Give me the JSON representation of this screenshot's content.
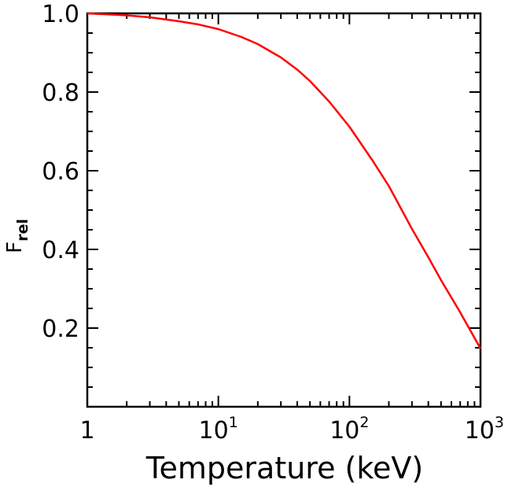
{
  "chart_data": {
    "type": "line",
    "title": "",
    "xlabel": "Temperature (keV)",
    "ylabel": "F",
    "ylabel_subscript": "rel",
    "x_scale": "log",
    "xlim": [
      1,
      1000
    ],
    "ylim": [
      0,
      1.0
    ],
    "x_ticks": [
      {
        "value": 1,
        "base": "1",
        "exp": ""
      },
      {
        "value": 10,
        "base": "10",
        "exp": "1"
      },
      {
        "value": 100,
        "base": "10",
        "exp": "2"
      },
      {
        "value": 1000,
        "base": "10",
        "exp": "3"
      }
    ],
    "y_ticks": [
      {
        "value": 0.2,
        "label": "0.2"
      },
      {
        "value": 0.4,
        "label": "0.4"
      },
      {
        "value": 0.6,
        "label": "0.6"
      },
      {
        "value": 0.8,
        "label": "0.8"
      },
      {
        "value": 1.0,
        "label": "1.0"
      }
    ],
    "grid": false,
    "series": [
      {
        "color": "#ff0000",
        "x": [
          1,
          2,
          3,
          5,
          7,
          10,
          15,
          20,
          30,
          40,
          50,
          70,
          100,
          150,
          200,
          300,
          400,
          500,
          700,
          1000
        ],
        "y": [
          1.0,
          0.995,
          0.99,
          0.98,
          0.972,
          0.96,
          0.94,
          0.922,
          0.888,
          0.857,
          0.828,
          0.776,
          0.712,
          0.626,
          0.561,
          0.452,
          0.38,
          0.322,
          0.24,
          0.148
        ]
      }
    ]
  }
}
